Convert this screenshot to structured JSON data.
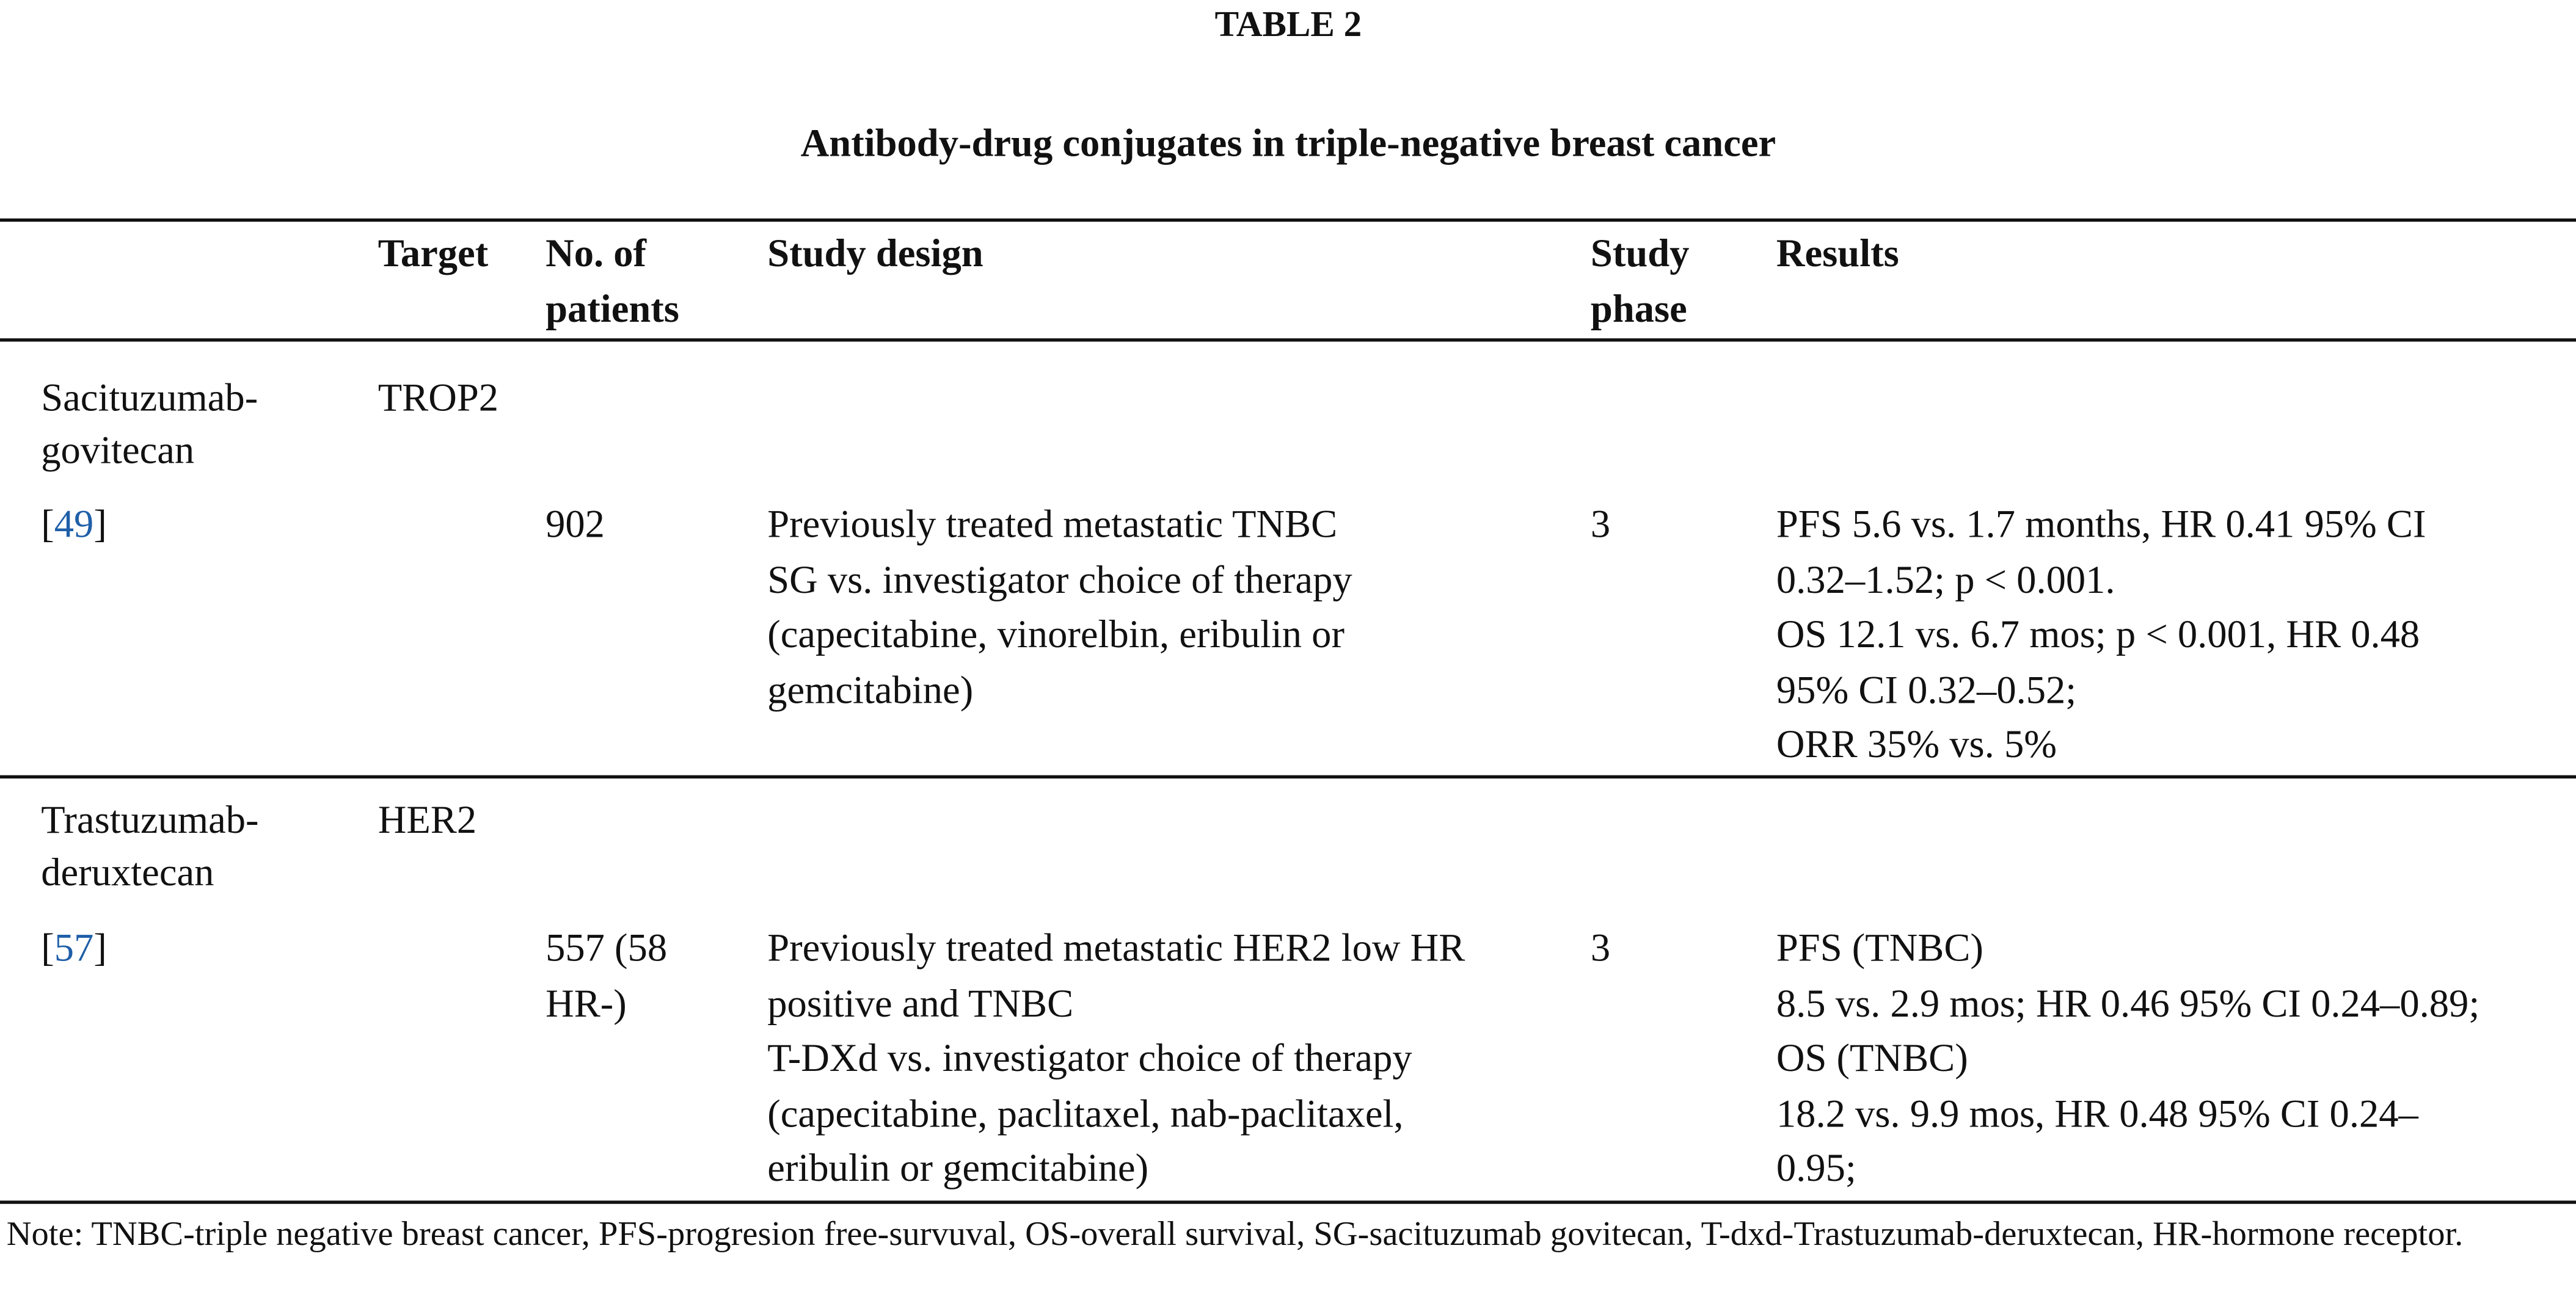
{
  "title": "TABLE 2",
  "caption": "Antibody-drug conjugates in triple-negative breast cancer",
  "table": {
    "header": [
      [
        "Target"
      ],
      [
        "No. of",
        "patients"
      ],
      [
        "Study design"
      ],
      [
        "Study",
        "phase"
      ],
      [
        "Results"
      ]
    ],
    "groups": [
      {
        "drug": [
          "Sacituzumab-",
          "govitecan"
        ],
        "target": "TROP2",
        "ref": [
          "[",
          "49",
          "]"
        ],
        "patients": [
          "902"
        ],
        "design": [
          "Previously treated metastatic TNBC",
          "SG vs. investigator choice of therapy",
          "(capecitabine, vinorelbin, eribulin or",
          "gemcitabine)"
        ],
        "phase": [
          "3"
        ],
        "results": [
          "PFS 5.6 vs. 1.7 months, HR 0.41 95% CI",
          "0.32–1.52; p < 0.001.",
          "OS 12.1 vs. 6.7 mos; p < 0.001, HR 0.48",
          "95% CI 0.32–0.52;",
          "ORR 35% vs. 5%"
        ]
      },
      {
        "drug": [
          "Trastuzumab-",
          "deruxtecan"
        ],
        "target": "HER2",
        "ref": [
          "[",
          "57",
          "]"
        ],
        "patients": [
          "557 (58",
          "HR-)"
        ],
        "design": [
          "Previously treated metastatic HER2 low HR",
          "positive and TNBC",
          "T-DXd vs. investigator choice of therapy",
          "(capecitabine, paclitaxel, nab-paclitaxel,",
          "eribulin or gemcitabine)"
        ],
        "phase": [
          "3"
        ],
        "results": [
          "PFS (TNBC)",
          "8.5 vs. 2.9 mos; HR 0.46 95% CI 0.24–0.89;",
          "OS (TNBC)",
          "18.2 vs. 9.9 mos, HR 0.48 95% CI 0.24–",
          "0.95;"
        ]
      }
    ]
  },
  "note": "Note: TNBC-triple negative breast cancer, PFS-progresion free-survuval, OS-overall survival, SG-sacituzumab govitecan, T-dxd-Trastuzumab-deruxtecan, HR-hormone receptor."
}
